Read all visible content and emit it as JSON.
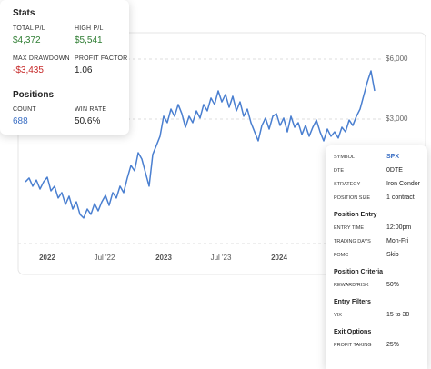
{
  "stats": {
    "title": "Stats",
    "items": [
      {
        "label": "TOTAL P/L",
        "value": "$4,372",
        "color": "#2e7d32"
      },
      {
        "label": "HIGH P/L",
        "value": "$5,541",
        "color": "#2e7d32"
      },
      {
        "label": "MAX DRAWDOWN",
        "value": "-$3,435",
        "color": "#c62828"
      },
      {
        "label": "PROFIT FACTOR",
        "value": "1.06",
        "color": "#222222"
      }
    ]
  },
  "positions": {
    "title": "Positions",
    "items": [
      {
        "label": "COUNT",
        "value": "688",
        "color": "#3b6fc4"
      },
      {
        "label": "WIN RATE",
        "value": "50.6%",
        "color": "#222222"
      }
    ]
  },
  "chart_data": {
    "type": "line",
    "color": "#4a7fd0",
    "values": [
      -140,
      50,
      -360,
      -50,
      -500,
      -140,
      90,
      -590,
      -360,
      -950,
      -680,
      -1270,
      -860,
      -1500,
      -1140,
      -1770,
      -1950,
      -1500,
      -1770,
      -1230,
      -1590,
      -1140,
      -820,
      -1320,
      -680,
      -950,
      -360,
      -680,
      50,
      680,
      410,
      1320,
      1000,
      320,
      -360,
      1230,
      1680,
      2140,
      3140,
      2820,
      3500,
      3140,
      3730,
      3270,
      2590,
      3140,
      2820,
      3410,
      3050,
      3730,
      3410,
      4050,
      3730,
      4410,
      3860,
      4230,
      3590,
      4140,
      3410,
      3860,
      3140,
      3500,
      2820,
      2360,
      1910,
      2680,
      3050,
      2500,
      3140,
      3270,
      2680,
      3050,
      2360,
      3140,
      2590,
      2820,
      2230,
      2680,
      2140,
      2590,
      2950,
      2360,
      1910,
      2500,
      2140,
      2360,
      2050,
      2590,
      2360,
      2950,
      2680,
      3140,
      3500,
      4180,
      4860,
      5410,
      4410
    ],
    "xlim": [
      0,
      96
    ],
    "xticks": [
      {
        "value": 6,
        "label": "2022"
      },
      {
        "value": 21.75,
        "label": "Jul '22"
      },
      {
        "value": 38,
        "label": "2023"
      },
      {
        "value": 53.75,
        "label": "Jul '23"
      },
      {
        "value": 69.75,
        "label": "2024"
      }
    ],
    "ylim": [
      -3200,
      7100
    ],
    "yticks": [
      {
        "value": 6000,
        "label": "$6,000"
      },
      {
        "value": 3000,
        "label": "$3,000"
      }
    ],
    "grid": true
  },
  "settings": {
    "rows": [
      {
        "label": "SYMBOL",
        "value": "SPX"
      },
      {
        "label": "DTE",
        "value": "0DTE"
      },
      {
        "label": "STRATEGY",
        "value": "Iron Condor"
      },
      {
        "label": "POSITION SIZE",
        "value": "1 contract"
      }
    ],
    "sections": [
      {
        "title": "Position Entry",
        "rows": [
          {
            "label": "ENTRY TIME",
            "value": "12:00pm"
          },
          {
            "label": "TRADING DAYS",
            "value": "Mon-Fri"
          },
          {
            "label": "FOMC",
            "value": "Skip"
          }
        ]
      },
      {
        "title": "Position Criteria",
        "rows": [
          {
            "label": "REWARD/RISK",
            "value": "50%"
          }
        ]
      },
      {
        "title": "Entry Filters",
        "rows": [
          {
            "label": "VIX",
            "value": "15 to 30"
          }
        ]
      },
      {
        "title": "Exit Options",
        "rows": [
          {
            "label": "PROFIT TAKING",
            "value": "25%"
          }
        ]
      }
    ]
  }
}
